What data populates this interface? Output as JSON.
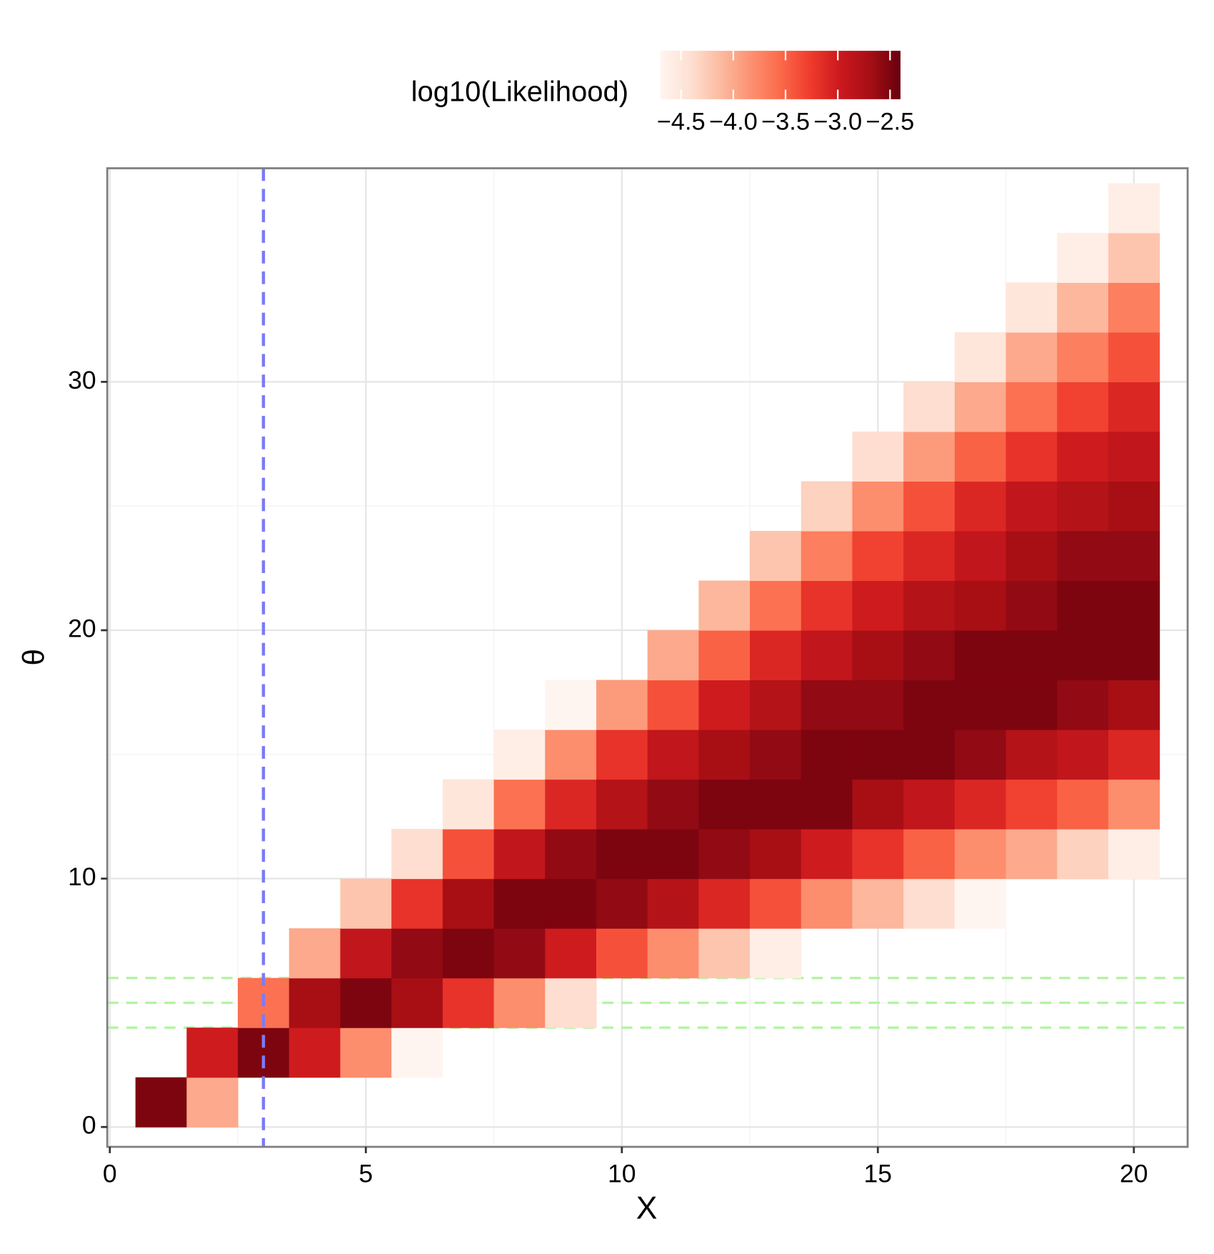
{
  "chart_data": {
    "type": "heatmap",
    "legend_title": "log10(Likelihood)",
    "x_label": "X",
    "y_label": "θ",
    "x": [
      1,
      2,
      3,
      4,
      5,
      6,
      7,
      8,
      9,
      10,
      11,
      12,
      13,
      14,
      15,
      16,
      17,
      18,
      19,
      20
    ],
    "y": [
      1,
      3,
      5,
      7,
      9,
      11,
      13,
      15,
      17,
      19,
      21,
      23,
      25,
      27,
      29,
      31,
      33,
      35,
      37
    ],
    "z": [
      [
        -2.5,
        null,
        null,
        null,
        null,
        null,
        null,
        null,
        null,
        null,
        null,
        null,
        null,
        null,
        null,
        null,
        null,
        null,
        null
      ],
      [
        -4.0,
        -3.0,
        null,
        null,
        null,
        null,
        null,
        null,
        null,
        null,
        null,
        null,
        null,
        null,
        null,
        null,
        null,
        null,
        null
      ],
      [
        null,
        -2.5,
        -3.6,
        null,
        null,
        null,
        null,
        null,
        null,
        null,
        null,
        null,
        null,
        null,
        null,
        null,
        null,
        null,
        null
      ],
      [
        null,
        -3.0,
        -2.7,
        -4.0,
        null,
        null,
        null,
        null,
        null,
        null,
        null,
        null,
        null,
        null,
        null,
        null,
        null,
        null,
        null
      ],
      [
        null,
        -3.8,
        -2.5,
        -2.9,
        -4.2,
        null,
        null,
        null,
        null,
        null,
        null,
        null,
        null,
        null,
        null,
        null,
        null,
        null,
        null
      ],
      [
        null,
        -4.7,
        -2.7,
        -2.6,
        -3.2,
        -4.4,
        null,
        null,
        null,
        null,
        null,
        null,
        null,
        null,
        null,
        null,
        null,
        null,
        null
      ],
      [
        null,
        null,
        -3.2,
        -2.5,
        -2.7,
        -3.4,
        -4.5,
        null,
        null,
        null,
        null,
        null,
        null,
        null,
        null,
        null,
        null,
        null,
        null
      ],
      [
        null,
        null,
        -3.8,
        -2.6,
        -2.5,
        -2.9,
        -3.6,
        -4.6,
        null,
        null,
        null,
        null,
        null,
        null,
        null,
        null,
        null,
        null,
        null
      ],
      [
        null,
        null,
        -4.4,
        -3.0,
        -2.5,
        -2.6,
        -3.1,
        -3.8,
        -4.7,
        null,
        null,
        null,
        null,
        null,
        null,
        null,
        null,
        null,
        null
      ],
      [
        null,
        null,
        null,
        -3.4,
        -2.6,
        -2.5,
        -2.8,
        -3.2,
        -3.9,
        null,
        null,
        null,
        null,
        null,
        null,
        null,
        null,
        null,
        null
      ],
      [
        null,
        null,
        null,
        -3.8,
        -2.8,
        -2.5,
        -2.6,
        -2.9,
        -3.4,
        -4.0,
        null,
        null,
        null,
        null,
        null,
        null,
        null,
        null,
        null
      ],
      [
        null,
        null,
        null,
        -4.2,
        -3.1,
        -2.6,
        -2.5,
        -2.7,
        -3.0,
        -3.5,
        -4.1,
        null,
        null,
        null,
        null,
        null,
        null,
        null,
        null
      ],
      [
        null,
        null,
        null,
        -4.6,
        -3.4,
        -2.7,
        -2.5,
        -2.6,
        -2.8,
        -3.1,
        -3.6,
        -4.2,
        null,
        null,
        null,
        null,
        null,
        null,
        null
      ],
      [
        null,
        null,
        null,
        null,
        -3.8,
        -3.0,
        -2.5,
        -2.5,
        -2.6,
        -2.9,
        -3.2,
        -3.7,
        -4.3,
        null,
        null,
        null,
        null,
        null,
        null
      ],
      [
        null,
        null,
        null,
        null,
        -4.1,
        -3.2,
        -2.7,
        -2.5,
        -2.6,
        -2.7,
        -3.0,
        -3.3,
        -3.8,
        -4.4,
        null,
        null,
        null,
        null,
        null
      ],
      [
        null,
        null,
        null,
        null,
        -4.4,
        -3.5,
        -2.9,
        -2.5,
        -2.5,
        -2.6,
        -2.8,
        -3.1,
        -3.4,
        -3.9,
        -4.4,
        null,
        null,
        null,
        null
      ],
      [
        null,
        null,
        null,
        null,
        -4.7,
        -3.8,
        -3.1,
        -2.6,
        -2.5,
        -2.5,
        -2.7,
        -2.9,
        -3.1,
        -3.5,
        -4.0,
        -4.5,
        null,
        null,
        null
      ],
      [
        null,
        null,
        null,
        null,
        null,
        -4.0,
        -3.3,
        -2.8,
        -2.5,
        -2.5,
        -2.6,
        -2.7,
        -2.9,
        -3.2,
        -3.6,
        -4.0,
        -4.5,
        null,
        null
      ],
      [
        null,
        null,
        null,
        null,
        null,
        -4.3,
        -3.5,
        -2.9,
        -2.6,
        -2.5,
        -2.5,
        -2.6,
        -2.8,
        -3.0,
        -3.3,
        -3.7,
        -4.1,
        -4.6,
        null
      ],
      [
        null,
        null,
        null,
        null,
        null,
        -4.6,
        -3.8,
        -3.1,
        -2.7,
        -2.5,
        -2.5,
        -2.6,
        -2.7,
        -2.9,
        -3.1,
        -3.4,
        -3.7,
        -4.2,
        -4.6
      ]
    ],
    "colorscale": [
      "#fff5f0",
      "#fee0d2",
      "#fcbba1",
      "#fc9272",
      "#fb6a4a",
      "#ef3b2c",
      "#cb181d",
      "#a50f15",
      "#67000d"
    ],
    "zlim": [
      -4.7,
      -2.4
    ],
    "zticks": [
      {
        "value": -4.5,
        "label": "−4.5"
      },
      {
        "value": -4.0,
        "label": "−4.0"
      },
      {
        "value": -3.5,
        "label": "−3.5"
      },
      {
        "value": -3.0,
        "label": "−3.0"
      },
      {
        "value": -2.5,
        "label": "−2.5"
      }
    ],
    "xlim": [
      -0.05,
      21.05
    ],
    "xticks": [
      0,
      5,
      10,
      15,
      20
    ],
    "ylim": [
      -0.8,
      38.6
    ],
    "yticks": [
      0,
      10,
      20,
      30
    ],
    "grid": true,
    "legend_position": "top",
    "vlines": [
      {
        "x": 3,
        "color": "#7b7bf5"
      }
    ],
    "hlines": {
      "values": [
        4,
        5,
        6
      ],
      "color": "#b2f5a0"
    }
  }
}
